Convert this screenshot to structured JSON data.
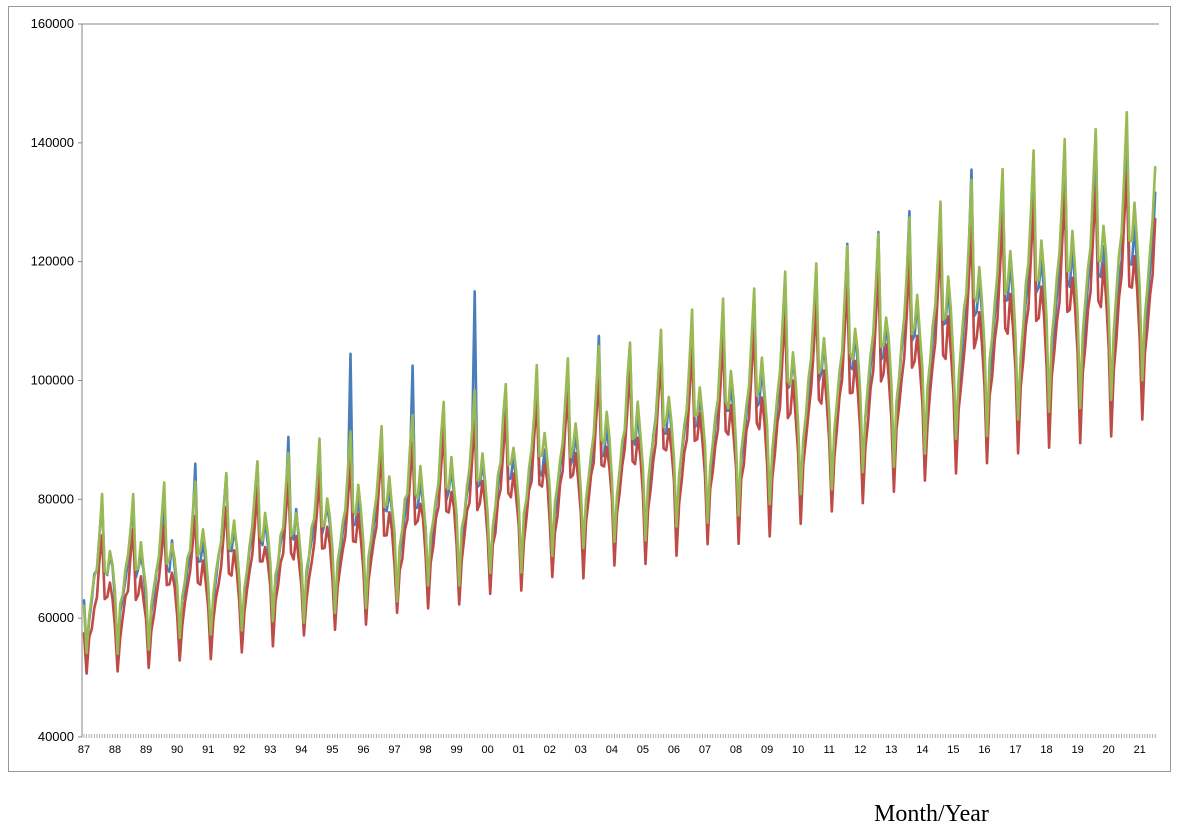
{
  "chart_data": {
    "type": "line",
    "xlabel": "Month/Year",
    "ylabel": "",
    "title": "",
    "ylim": [
      40000,
      160000
    ],
    "yticks": [
      "40000",
      "60000",
      "80000",
      "100000",
      "120000",
      "140000",
      "160000"
    ],
    "xticks": [
      "87",
      "88",
      "89",
      "90",
      "91",
      "92",
      "93",
      "94",
      "95",
      "96",
      "97",
      "98",
      "99",
      "00",
      "01",
      "02",
      "03",
      "04",
      "05",
      "06",
      "07",
      "08",
      "09",
      "10",
      "11",
      "12",
      "13",
      "14",
      "15",
      "16",
      "17",
      "18",
      "19",
      "20",
      "21"
    ],
    "x_start_year": 1987,
    "grid": false,
    "legend": "none",
    "seasonal_pattern": [
      0.93,
      0.8,
      0.9,
      0.94,
      0.99,
      1.02,
      1.1,
      1.18,
      1.0,
      1.0,
      1.05,
      1.0
    ],
    "series": [
      {
        "color": "#4a7ebb",
        "annual_levels": [
          67000,
          68000,
          67500,
          69000,
          70000,
          71500,
          73000,
          74000,
          75500,
          76500,
          78000,
          80000,
          81000,
          82000,
          83500,
          85000,
          87000,
          88500,
          90500,
          92000,
          93500,
          95000,
          97000,
          99000,
          101000,
          103000,
          105000,
          107500,
          110000,
          112500,
          114000,
          115500,
          117000,
          117000,
          120000
        ],
        "spikes": [
          {
            "year": "90",
            "value": 86000
          },
          {
            "year": "93",
            "value": 90500
          },
          {
            "year": "95",
            "value": 104500
          },
          {
            "year": "97",
            "value": 102500
          },
          {
            "year": "99",
            "value": 115000
          },
          {
            "year": "03",
            "value": 107500
          },
          {
            "year": "11",
            "value": 123000
          },
          {
            "year": "12",
            "value": 125000
          },
          {
            "year": "13",
            "value": 128500
          },
          {
            "year": "15",
            "value": 135500
          },
          {
            "year": "17",
            "value": 135000
          },
          {
            "year": "18",
            "value": 139000
          },
          {
            "year": "19",
            "value": 141500
          }
        ]
      },
      {
        "color": "#be4b48",
        "annual_levels": [
          62500,
          63500,
          64000,
          65500,
          66500,
          68000,
          69500,
          70500,
          72000,
          73500,
          75000,
          76500,
          78000,
          79500,
          81000,
          82500,
          84000,
          85500,
          87000,
          88500,
          90000,
          91500,
          93000,
          95000,
          97000,
          99000,
          101000,
          103000,
          105000,
          107000,
          109000,
          111000,
          112000,
          113500,
          116000
        ],
        "spikes": []
      },
      {
        "color": "#98b954",
        "annual_levels": [
          67000,
          68500,
          69000,
          70000,
          71000,
          72500,
          74000,
          75000,
          76500,
          78000,
          79500,
          81000,
          82500,
          84000,
          85500,
          87000,
          88500,
          90000,
          91500,
          93000,
          95000,
          96500,
          98500,
          100500,
          102500,
          104500,
          106500,
          109000,
          111500,
          114000,
          116000,
          118000,
          119500,
          120500,
          124000
        ],
        "spikes": [
          {
            "year": "21",
            "value": 143000
          }
        ]
      }
    ]
  },
  "axis_title": "Month/Year"
}
